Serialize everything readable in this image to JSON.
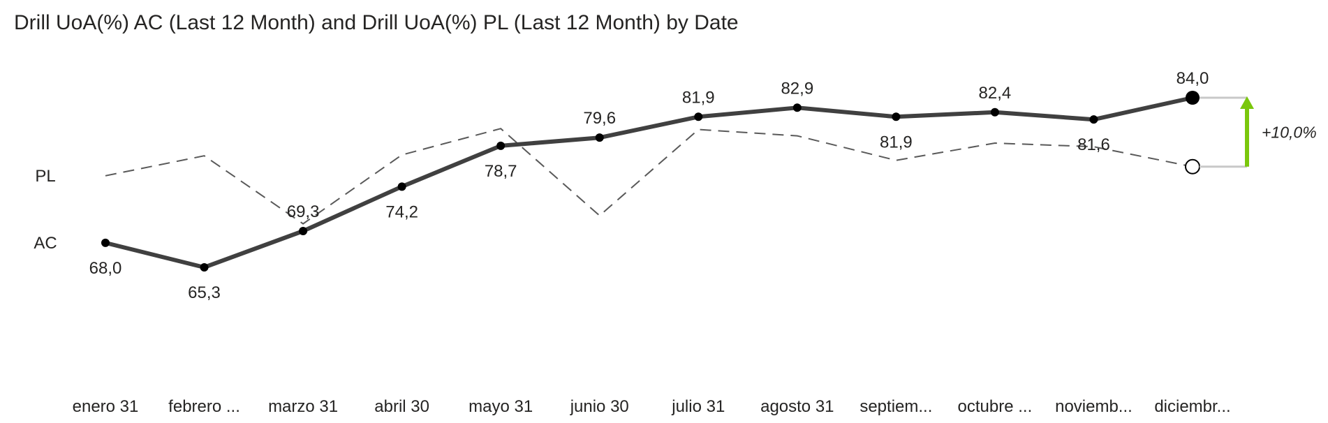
{
  "title": "Drill UoA(%) AC (Last 12 Month) and Drill UoA(%) PL (Last 12 Month) by Date",
  "colors": {
    "ac_line": "#404040",
    "pl_line": "#595959",
    "variance_positive": "#7ac70c",
    "variance_connector": "#c8c8c8",
    "text": "#252423"
  },
  "chart_data": {
    "type": "line",
    "title": "Drill UoA(%) AC (Last 12 Month) and Drill UoA(%) PL (Last 12 Month) by Date",
    "categories": [
      "enero 31",
      "febrero ...",
      "marzo 31",
      "abril 30",
      "mayo 31",
      "junio 30",
      "julio 31",
      "agosto 31",
      "septiem...",
      "octubre ...",
      "noviemb...",
      "diciembr..."
    ],
    "series": [
      {
        "name": "AC",
        "style": "solid",
        "values": [
          68.0,
          65.3,
          69.3,
          74.2,
          78.7,
          79.6,
          81.9,
          82.9,
          81.9,
          82.4,
          81.6,
          84.0
        ],
        "labels": [
          "68,0",
          "65,3",
          "69,3",
          "74,2",
          "78,7",
          "79,6",
          "81,9",
          "82,9",
          "81,9",
          "82,4",
          "81,6",
          "84,0"
        ]
      },
      {
        "name": "PL",
        "style": "dashed",
        "values": [
          75.4,
          77.6,
          70.1,
          77.7,
          80.6,
          71.0,
          80.5,
          79.8,
          77.1,
          79.0,
          78.6,
          76.4
        ]
      }
    ],
    "variance": {
      "label": "+10,0%",
      "direction": "up"
    },
    "ylim": [
      55,
      90
    ],
    "grid": false,
    "legend": "series names at left of first data point"
  }
}
